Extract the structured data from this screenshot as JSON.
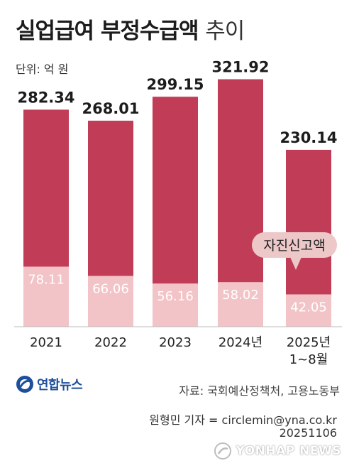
{
  "header": {
    "title_bold": "실업급여 부정수급액",
    "title_light": "추이",
    "unit_label": "단위: 억 원"
  },
  "chart_data": {
    "type": "bar",
    "categories": [
      "2021",
      "2022",
      "2023",
      "2024년",
      "2025년\n1~8월"
    ],
    "series": [
      {
        "values": [
          282.34,
          268.01,
          299.15,
          321.92,
          230.14
        ],
        "color": "#c13c56"
      },
      {
        "values": [
          78.11,
          66.06,
          56.16,
          58.02,
          42.05
        ],
        "color": "#f2c4c8"
      }
    ],
    "value_labels": [
      [
        "282.34",
        "268.01",
        "299.15",
        "321.92",
        "230.14"
      ],
      [
        "78.11",
        "66.06",
        "56.16",
        "58.02",
        "42.05"
      ]
    ],
    "annotation": {
      "text": "자진신고액",
      "category_index": 4,
      "color": "#ecc8c8"
    },
    "ylim": [
      0,
      340
    ],
    "grid": false
  },
  "footer": {
    "logo_text": "연합뉴스",
    "source": "자료: 국회예산정책처, 고용노동부",
    "reporter": "원형민 기자 = circlemin@yna.co.kr",
    "date": "20251106",
    "watermark": "YONHAP NEWS"
  }
}
